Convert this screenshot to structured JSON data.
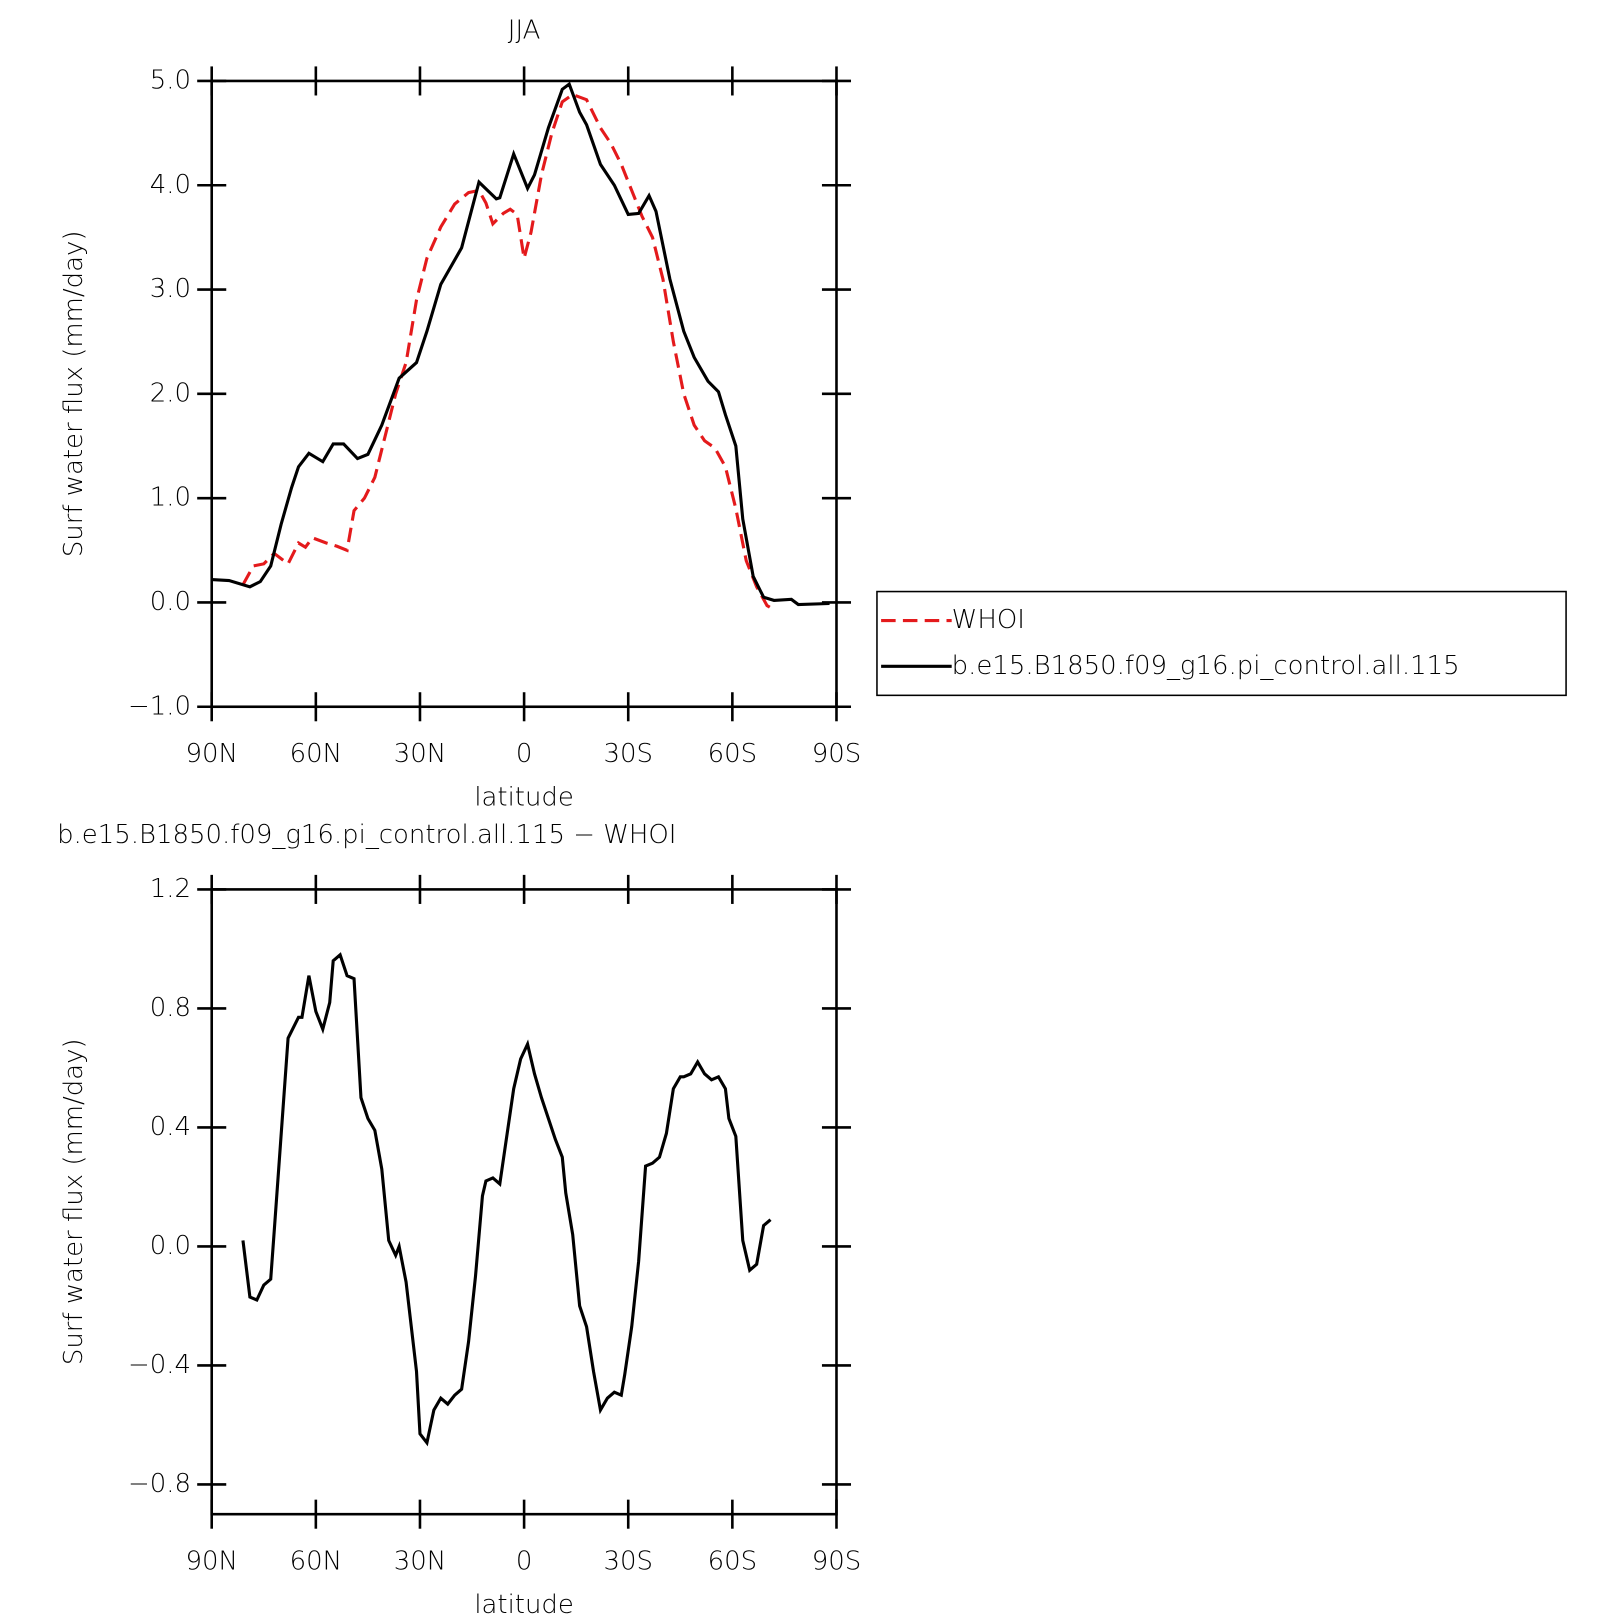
{
  "chart_data": [
    {
      "type": "line",
      "title": "JJA",
      "xlabel": "latitude",
      "ylabel": "Surf water flux (mm/day)",
      "xlim": [
        90,
        -90
      ],
      "xticks": [
        {
          "value": 90,
          "label": "90N"
        },
        {
          "value": 60,
          "label": "60N"
        },
        {
          "value": 30,
          "label": "30N"
        },
        0,
        {
          "value": -30,
          "label": "30S"
        },
        {
          "value": -60,
          "label": "60S"
        },
        {
          "value": -90,
          "label": "90S"
        }
      ],
      "ylim": [
        -1,
        5
      ],
      "yticks": [
        {
          "value": -1,
          "label": "−1.0"
        },
        {
          "value": 0,
          "label": "0.0"
        },
        {
          "value": 1,
          "label": "1.0"
        },
        {
          "value": 2,
          "label": "2.0"
        },
        {
          "value": 3,
          "label": "3.0"
        },
        {
          "value": 4,
          "label": "4.0"
        },
        {
          "value": 5,
          "label": "5.0"
        }
      ],
      "legend": "outside right",
      "series": [
        {
          "name": "WHOI",
          "color": "#e41a1c",
          "linestyle": "dashed",
          "x": [
            81,
            78,
            75,
            72,
            68,
            65,
            63,
            61,
            57,
            54,
            51,
            49,
            46,
            43,
            40,
            37,
            34,
            31,
            28,
            24,
            20,
            16,
            13,
            11,
            9,
            6,
            4,
            2,
            0,
            -2,
            -5,
            -8,
            -11,
            -14,
            -18,
            -22,
            -25,
            -28,
            -31,
            -34,
            -37,
            -40,
            -43,
            -46,
            -49,
            -52,
            -55,
            -58,
            -61,
            -64,
            -67,
            -70,
            -72
          ],
          "values": [
            0.17,
            0.35,
            0.37,
            0.47,
            0.37,
            0.57,
            0.53,
            0.62,
            0.57,
            0.54,
            0.5,
            0.88,
            1.0,
            1.2,
            1.6,
            2.0,
            2.3,
            2.9,
            3.3,
            3.6,
            3.82,
            3.93,
            3.95,
            3.83,
            3.63,
            3.73,
            3.77,
            3.72,
            3.3,
            3.55,
            4.1,
            4.5,
            4.8,
            4.87,
            4.82,
            4.55,
            4.4,
            4.2,
            3.95,
            3.7,
            3.5,
            3.1,
            2.5,
            2.0,
            1.7,
            1.55,
            1.48,
            1.3,
            0.9,
            0.4,
            0.15,
            -0.03,
            -0.07
          ]
        },
        {
          "name": "b.e15.B1850.f09_g16.pi_control.all.115",
          "color": "#000000",
          "linestyle": "solid",
          "x": [
            90,
            85,
            79,
            76,
            73,
            70,
            67,
            65,
            62,
            58,
            55,
            52,
            48,
            45,
            41,
            36,
            31,
            28,
            24,
            18,
            13,
            8,
            7,
            3,
            -1,
            -3,
            -7,
            -11,
            -13,
            -16,
            -18,
            -22,
            -26,
            -30,
            -33,
            -36,
            -38,
            -42,
            -46,
            -49,
            -53,
            -56,
            -58,
            -61,
            -63,
            -66,
            -69,
            -72,
            -77,
            -79,
            -88
          ],
          "values": [
            0.22,
            0.21,
            0.15,
            0.2,
            0.35,
            0.75,
            1.1,
            1.3,
            1.43,
            1.35,
            1.52,
            1.52,
            1.38,
            1.42,
            1.7,
            2.15,
            2.3,
            2.6,
            3.05,
            3.4,
            4.03,
            3.87,
            3.88,
            4.3,
            3.97,
            4.1,
            4.55,
            4.92,
            4.97,
            4.7,
            4.58,
            4.2,
            4.0,
            3.72,
            3.73,
            3.9,
            3.75,
            3.1,
            2.6,
            2.35,
            2.12,
            2.02,
            1.8,
            1.5,
            0.8,
            0.25,
            0.05,
            0.02,
            0.03,
            -0.02,
            -0.01
          ]
        }
      ]
    },
    {
      "type": "line",
      "title": "b.e15.B1850.f09_g16.pi_control.all.115 − WHOI",
      "xlabel": "latitude",
      "ylabel": "Surf water flux (mm/day)",
      "xlim": [
        90,
        -90
      ],
      "xticks": [
        {
          "value": 90,
          "label": "90N"
        },
        {
          "value": 60,
          "label": "60N"
        },
        {
          "value": 30,
          "label": "30N"
        },
        0,
        {
          "value": -30,
          "label": "30S"
        },
        {
          "value": -60,
          "label": "60S"
        },
        {
          "value": -90,
          "label": "90S"
        }
      ],
      "ylim": [
        -0.9,
        1.2
      ],
      "yticks": [
        {
          "value": -0.8,
          "label": "−0.8"
        },
        {
          "value": -0.4,
          "label": "−0.4"
        },
        {
          "value": 0,
          "label": "0.0"
        },
        0.4,
        0.8,
        1.2
      ],
      "series": [
        {
          "color": "#000000",
          "linestyle": "solid",
          "x": [
            81,
            79,
            77,
            75,
            73,
            72,
            68,
            65,
            64,
            62,
            60,
            58,
            56,
            55,
            53,
            51,
            49,
            47,
            45,
            43,
            41,
            39,
            37,
            36,
            34,
            31,
            30,
            28,
            26,
            24,
            22,
            20,
            18,
            16,
            14,
            12,
            11,
            9,
            7,
            5,
            3,
            1,
            -1,
            -3,
            -5,
            -7,
            -9,
            -11,
            -12,
            -14,
            -16,
            -18,
            -20,
            -22,
            -24,
            -26,
            -28,
            -29,
            -31,
            -33,
            -35,
            -37,
            -39,
            -41,
            -43,
            -45,
            -46,
            -48,
            -50,
            -52,
            -54,
            -56,
            -58,
            -59,
            -61,
            -63,
            -65,
            -67,
            -69,
            -71
          ],
          "values": [
            0.02,
            -0.17,
            -0.18,
            -0.13,
            -0.11,
            0.05,
            0.7,
            0.77,
            0.77,
            0.91,
            0.79,
            0.73,
            0.82,
            0.96,
            0.98,
            0.91,
            0.9,
            0.5,
            0.43,
            0.39,
            0.26,
            0.02,
            -0.03,
            0.0,
            -0.12,
            -0.42,
            -0.63,
            -0.66,
            -0.55,
            -0.51,
            -0.53,
            -0.5,
            -0.48,
            -0.32,
            -0.1,
            0.17,
            0.22,
            0.23,
            0.21,
            0.37,
            0.53,
            0.63,
            0.68,
            0.58,
            0.5,
            0.43,
            0.36,
            0.3,
            0.18,
            0.04,
            -0.2,
            -0.27,
            -0.42,
            -0.55,
            -0.51,
            -0.49,
            -0.5,
            -0.43,
            -0.27,
            -0.05,
            0.27,
            0.28,
            0.3,
            0.38,
            0.53,
            0.57,
            0.57,
            0.58,
            0.62,
            0.58,
            0.56,
            0.57,
            0.53,
            0.43,
            0.37,
            0.02,
            -0.08,
            -0.06,
            0.07,
            0.09
          ]
        }
      ]
    }
  ]
}
